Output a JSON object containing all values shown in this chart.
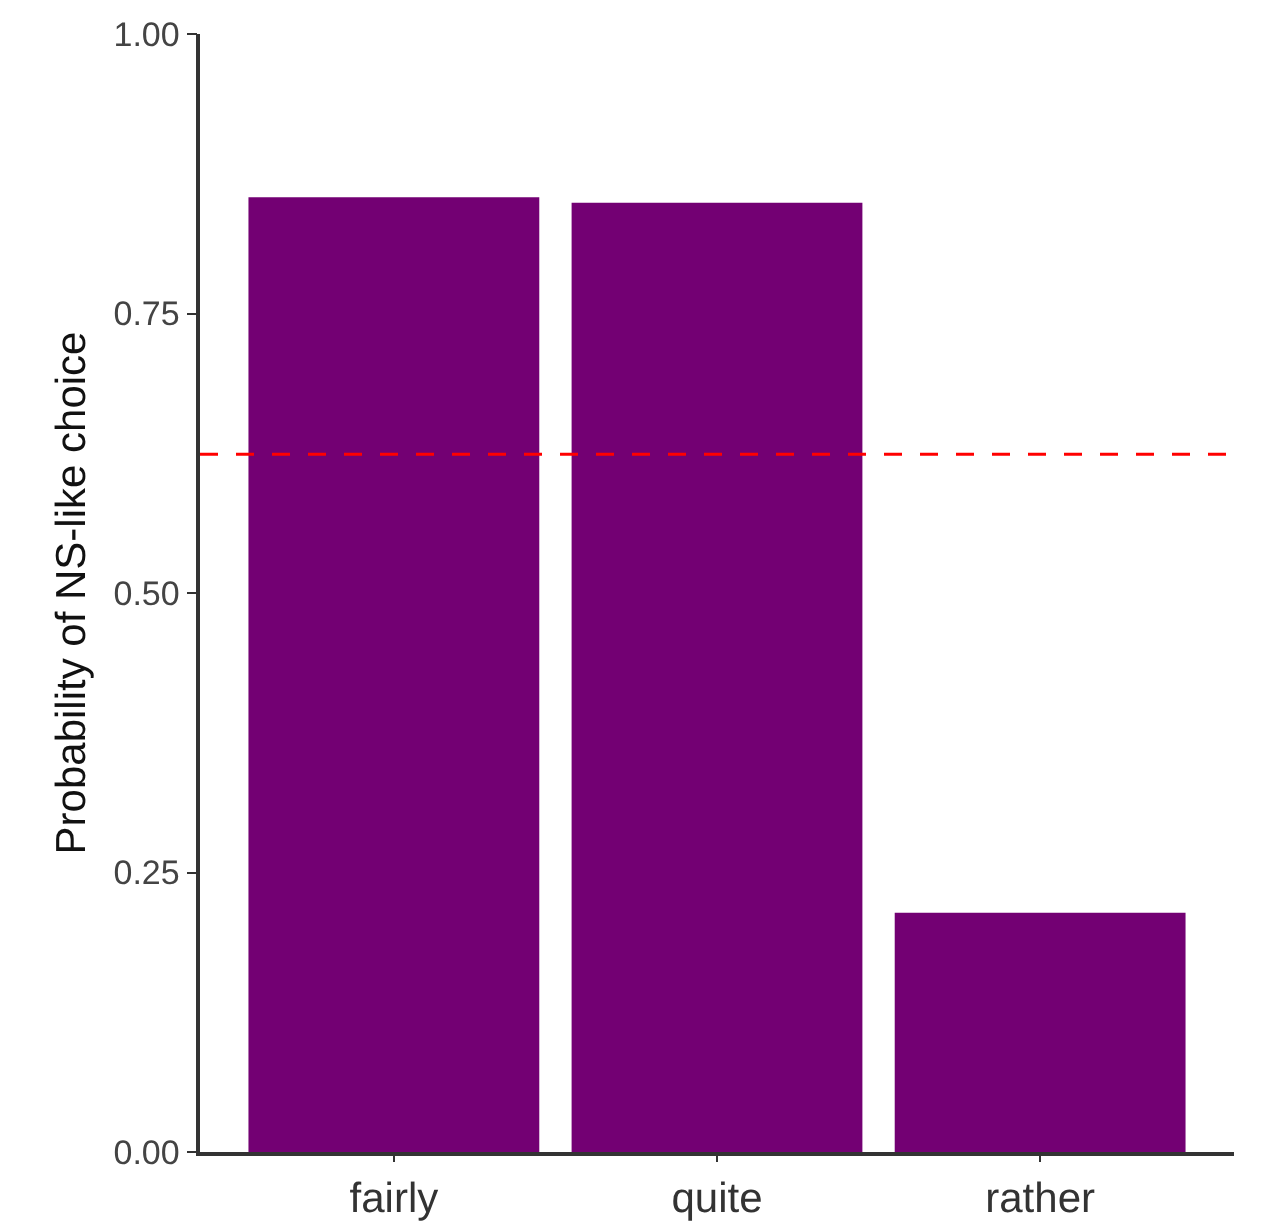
{
  "chart_data": {
    "type": "bar",
    "ylabel": "Probability of NS-like choice",
    "categories": [
      "fairly",
      "quite",
      "rather"
    ],
    "values": [
      0.854,
      0.849,
      0.214
    ],
    "color": "#730073",
    "ylim": [
      0,
      1
    ],
    "yticks": [
      {
        "value": 0,
        "label": "0.00"
      },
      {
        "value": 0.25,
        "label": "0.25"
      },
      {
        "value": 0.5,
        "label": "0.50"
      },
      {
        "value": 0.75,
        "label": "0.75"
      },
      {
        "value": 1,
        "label": "1.00"
      }
    ],
    "grid": false,
    "ref_lines": [
      {
        "axis": "y",
        "value": 0.624,
        "color": "#ff0000",
        "line_style": "dashed"
      }
    ]
  }
}
